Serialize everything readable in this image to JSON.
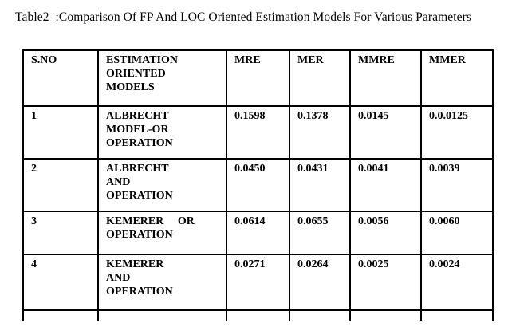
{
  "title": "Table2  :Comparison Of FP And LOC Oriented Estimation Models For Various Parameters",
  "table": {
    "headers": {
      "sno": "S.NO",
      "model": "ESTIMATION\nORIENTED\nMODELS",
      "mre": "MRE",
      "mer": "MER",
      "mmre": "MMRE",
      "mmer": "MMER"
    },
    "rows": [
      {
        "sno": "1",
        "model": "ALBRECHT\nMODEL-OR\nOPERATION",
        "mre": "0.1598",
        "mer": "0.1378",
        "mmre": "0.0145",
        "mmer": "0.0.0125"
      },
      {
        "sno": "2",
        "model": "ALBRECHT\nAND\nOPERATION",
        "mre": "0.0450",
        "mer": "0.0431",
        "mmre": "0.0041",
        "mmer": "0.0039"
      },
      {
        "sno": "3",
        "model": "KEMERER     OR\nOPERATION",
        "mre": "0.0614",
        "mer": "0.0655",
        "mmre": "0.0056",
        "mmer": "0.0060"
      },
      {
        "sno": "4",
        "model": "KEMERER\nAND\nOPERATION",
        "mre": "0.0271",
        "mer": "0.0264",
        "mmre": "0.0025",
        "mmer": "0.0024"
      }
    ]
  }
}
